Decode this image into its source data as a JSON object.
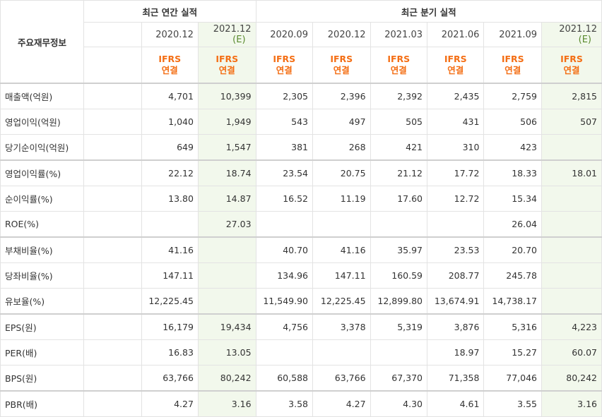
{
  "corner_label": "주요재무정보",
  "annual_group_label": "최근 연간 실적",
  "quarter_group_label": "최근 분기 실적",
  "periods": [
    {
      "label": "2020.12",
      "est": "",
      "type": "IFRS\n연결"
    },
    {
      "label": "2021.12",
      "est": "(E)",
      "type": "IFRS\n연결"
    },
    {
      "label": "2020.09",
      "est": "",
      "type": "IFRS\n연결"
    },
    {
      "label": "2020.12",
      "est": "",
      "type": "IFRS\n연결"
    },
    {
      "label": "2021.03",
      "est": "",
      "type": "IFRS\n연결"
    },
    {
      "label": "2021.06",
      "est": "",
      "type": "IFRS\n연결"
    },
    {
      "label": "2021.09",
      "est": "",
      "type": "IFRS\n연결"
    },
    {
      "label": "2021.12",
      "est": "(E)",
      "type": "IFRS\n연결"
    }
  ],
  "rows": [
    {
      "label": "매출액(억원)",
      "values": [
        "4,701",
        "10,399",
        "2,305",
        "2,396",
        "2,392",
        "2,435",
        "2,759",
        "2,815"
      ]
    },
    {
      "label": "영업이익(억원)",
      "values": [
        "1,040",
        "1,949",
        "543",
        "497",
        "505",
        "431",
        "506",
        "507"
      ]
    },
    {
      "label": "당기순이익(억원)",
      "values": [
        "649",
        "1,547",
        "381",
        "268",
        "421",
        "310",
        "423",
        ""
      ]
    },
    {
      "label": "영업이익률(%)",
      "values": [
        "22.12",
        "18.74",
        "23.54",
        "20.75",
        "21.12",
        "17.72",
        "18.33",
        "18.01"
      ]
    },
    {
      "label": "순이익률(%)",
      "values": [
        "13.80",
        "14.87",
        "16.52",
        "11.19",
        "17.60",
        "12.72",
        "15.34",
        ""
      ]
    },
    {
      "label": "ROE(%)",
      "values": [
        "",
        "27.03",
        "",
        "",
        "",
        "",
        "26.04",
        ""
      ]
    },
    {
      "label": "부채비율(%)",
      "values": [
        "41.16",
        "",
        "40.70",
        "41.16",
        "35.97",
        "23.53",
        "20.70",
        ""
      ]
    },
    {
      "label": "당좌비율(%)",
      "values": [
        "147.11",
        "",
        "134.96",
        "147.11",
        "160.59",
        "208.77",
        "245.78",
        ""
      ]
    },
    {
      "label": "유보율(%)",
      "values": [
        "12,225.45",
        "",
        "11,549.90",
        "12,225.45",
        "12,899.80",
        "13,674.91",
        "14,738.17",
        ""
      ]
    },
    {
      "label": "EPS(원)",
      "values": [
        "16,179",
        "19,434",
        "4,756",
        "3,378",
        "5,319",
        "3,876",
        "5,316",
        "4,223"
      ]
    },
    {
      "label": "PER(배)",
      "values": [
        "16.83",
        "13.05",
        "",
        "",
        "",
        "18.97",
        "15.27",
        "60.07"
      ]
    },
    {
      "label": "BPS(원)",
      "values": [
        "63,766",
        "80,242",
        "60,588",
        "63,766",
        "67,370",
        "71,358",
        "77,046",
        "80,242"
      ]
    },
    {
      "label": "PBR(배)",
      "values": [
        "4.27",
        "3.16",
        "3.58",
        "4.27",
        "4.30",
        "4.61",
        "3.55",
        "3.16"
      ]
    }
  ]
}
